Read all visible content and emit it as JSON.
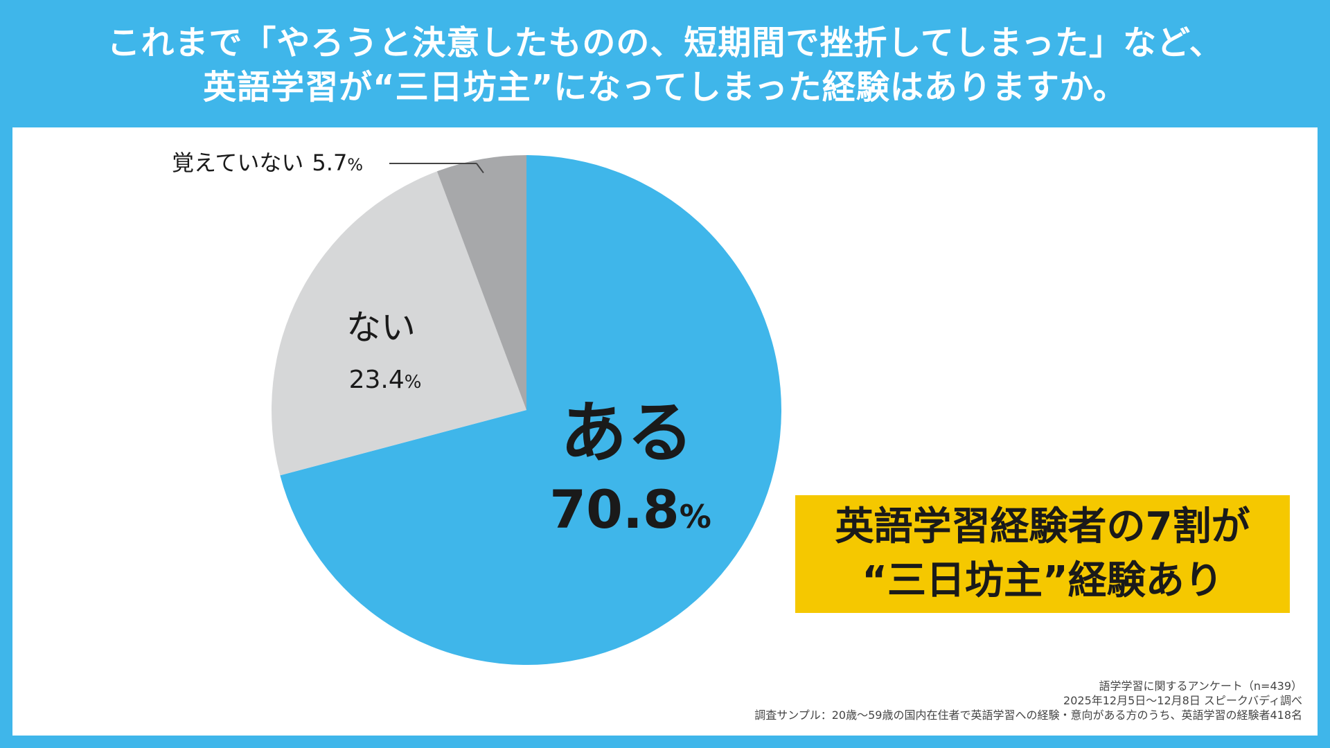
{
  "title": {
    "line1": "これまで「やろうと決意したものの、短期間で挫折してしまった」など、",
    "line2": "英語学習が“三日坊主”になってしまった経験はありますか。"
  },
  "chart_data": {
    "type": "pie",
    "unit": "%",
    "slices": [
      {
        "label": "ある",
        "value": 70.8,
        "value_text": "70.8",
        "color": "#3fb6ea"
      },
      {
        "label": "ない",
        "value": 23.4,
        "value_text": "23.4",
        "color": "#d6d7d8"
      },
      {
        "label": "覚えていない",
        "value": 5.7,
        "value_text": "5.7",
        "color": "#a7a8aa"
      }
    ],
    "start": "12 o'clock, clockwise"
  },
  "callout": {
    "line1": "英語学習経験者の7割が",
    "line2": "“三日坊主”経験あり",
    "color": "#f5c800"
  },
  "footnote": {
    "line1": "語学学習に関するアンケート（n=439）",
    "line2": "2025年12月5日〜12月8日 スピークバディ調べ",
    "line3": "調査サンプル：20歳〜59歳の国内在住者で英語学習への経験・意向がある方のうち、英語学習の経験者418名"
  },
  "colors": {
    "background": "#3fb6ea",
    "panel": "#ffffff"
  }
}
